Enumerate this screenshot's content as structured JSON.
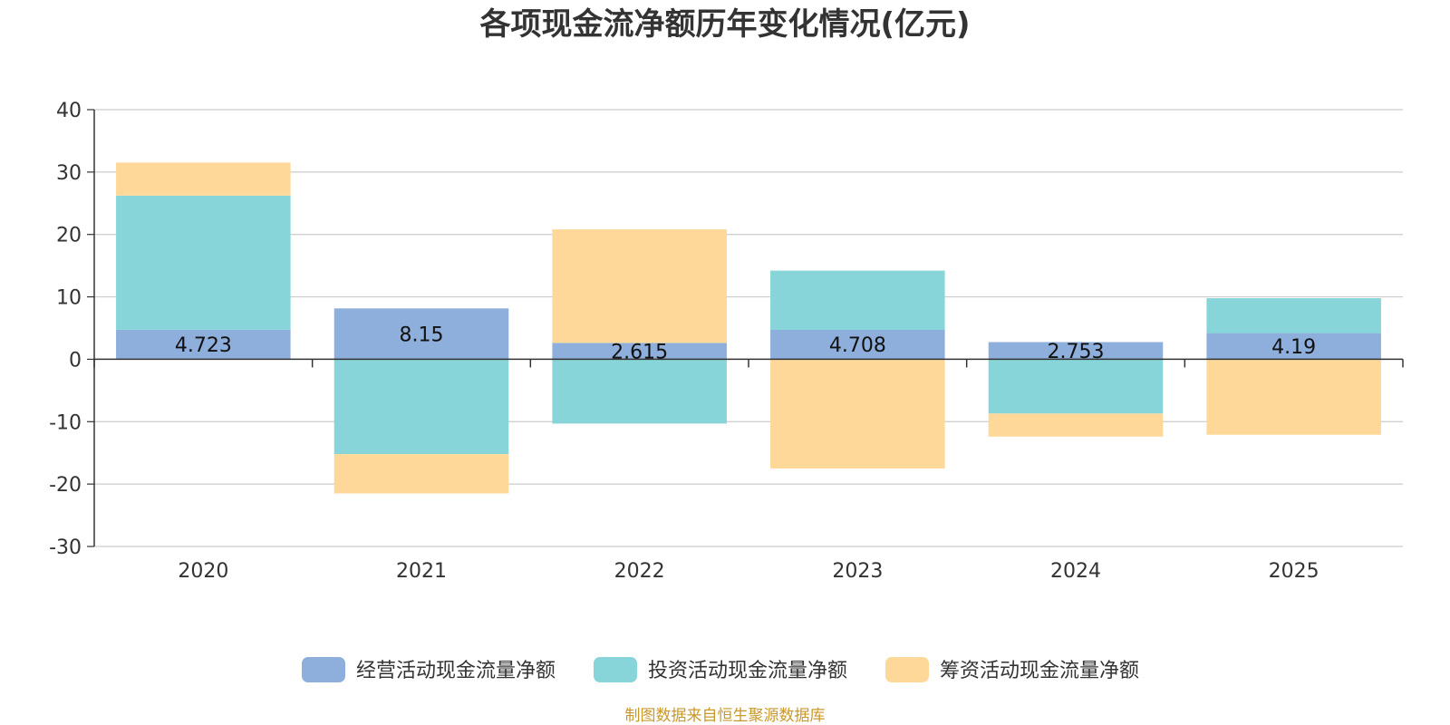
{
  "chart_data": {
    "type": "bar",
    "stacked": true,
    "title": "各项现金流净额历年变化情况(亿元)",
    "xlabel": "",
    "ylabel": "",
    "categories": [
      "2020",
      "2021",
      "2022",
      "2023",
      "2024",
      "2025"
    ],
    "ylim": [
      -30,
      40
    ],
    "yticks": [
      40,
      30,
      20,
      10,
      0,
      -10,
      -20,
      -30
    ],
    "series": [
      {
        "name": "经营活动现金流量净额",
        "color": "#8eaedb",
        "values": [
          4.723,
          8.15,
          2.615,
          4.708,
          2.753,
          4.19
        ]
      },
      {
        "name": "投资活动现金流量净额",
        "color": "#87d5d8",
        "values": [
          21.5,
          -15.2,
          -10.3,
          9.5,
          -8.7,
          5.6
        ]
      },
      {
        "name": "筹资活动现金流量净额",
        "color": "#fed898",
        "values": [
          5.3,
          -6.3,
          18.2,
          -17.5,
          -3.7,
          -12.1
        ]
      }
    ],
    "data_labels": [
      "4.723",
      "8.15",
      "2.615",
      "4.708",
      "2.753",
      "4.19"
    ],
    "legend_position": "bottom-center",
    "grid": true
  },
  "source_text": "制图数据来自恒生聚源数据库"
}
